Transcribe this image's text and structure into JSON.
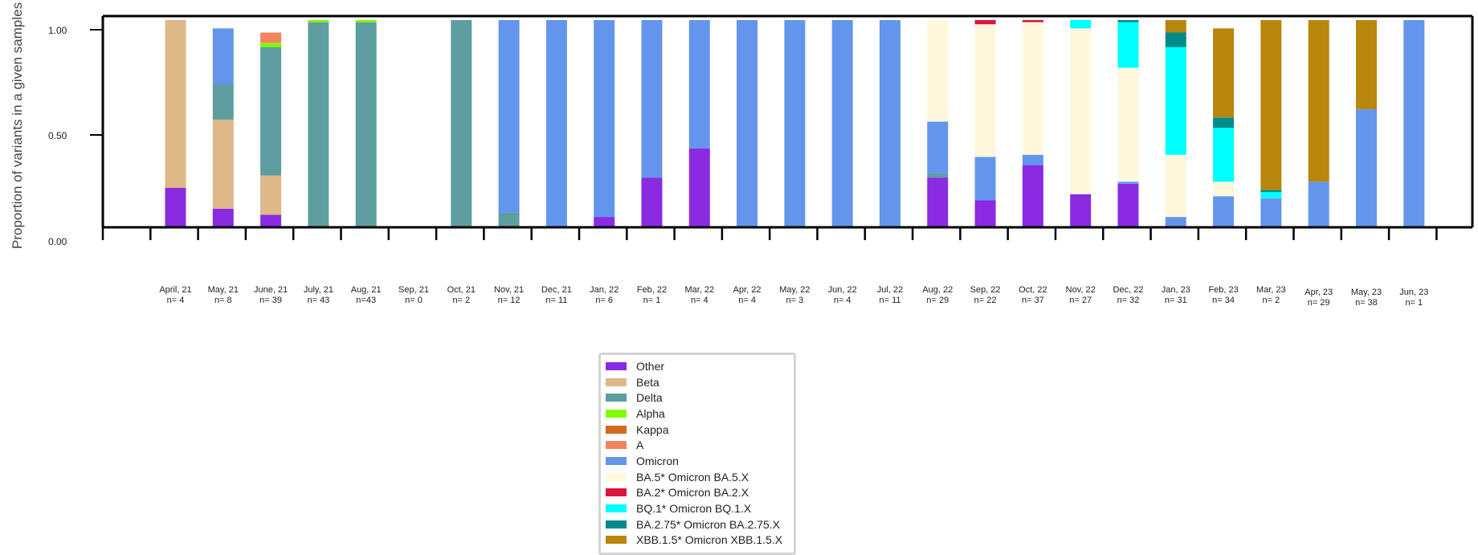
{
  "chart_data": {
    "type": "bar",
    "stacked": true,
    "title": "",
    "ylabel": "Proportion of variants in a given samples",
    "xlabel": "",
    "ylim": [
      0,
      1
    ],
    "yticks": [
      "0.00",
      "0.50",
      "1.00"
    ],
    "grid": false,
    "legend_position": "below",
    "categories": [
      {
        "month": "April, 21",
        "n": "n= 4"
      },
      {
        "month": "May, 21",
        "n": "n= 8"
      },
      {
        "month": "June, 21",
        "n": "n= 39"
      },
      {
        "month": "July, 21",
        "n": "n= 43"
      },
      {
        "month": "Aug, 21",
        "n": "n=43"
      },
      {
        "month": "Sep, 21",
        "n": "n= 0"
      },
      {
        "month": "Oct, 21",
        "n": "n= 2"
      },
      {
        "month": "Nov, 21",
        "n": "n= 12"
      },
      {
        "month": "Dec, 21",
        "n": "n= 11"
      },
      {
        "month": "Jan, 22",
        "n": "n= 6"
      },
      {
        "month": "Feb, 22",
        "n": "n= 1"
      },
      {
        "month": "Mar, 22",
        "n": "n= 4"
      },
      {
        "month": "Apr, 22",
        "n": "n= 4"
      },
      {
        "month": "May, 22",
        "n": "n= 3"
      },
      {
        "month": "Jun, 22",
        "n": "n= 4"
      },
      {
        "month": "Jul, 22",
        "n": "n= 11"
      },
      {
        "month": "Aug, 22",
        "n": "n= 29"
      },
      {
        "month": "Sep, 22",
        "n": "n= 22"
      },
      {
        "month": "Oct, 22",
        "n": "n= 37"
      },
      {
        "month": "Nov, 22",
        "n": "n= 27"
      },
      {
        "month": "Dec, 22",
        "n": "n= 32"
      },
      {
        "month": "Jan, 23",
        "n": "n= 31"
      },
      {
        "month": "Feb, 23",
        "n": "n= 34"
      },
      {
        "month": "Mar, 23",
        "n": "n= 2"
      },
      {
        "month": "Apr, 23",
        "n": "n= 29"
      },
      {
        "month": "May, 23",
        "n": "n= 38"
      },
      {
        "month": "Jun, 23",
        "n": "n= 1"
      }
    ],
    "series": [
      {
        "name": "Other",
        "color": "#8a2be2",
        "values": [
          0.19,
          0.09,
          0.06,
          0,
          0,
          0,
          0,
          0,
          0,
          0.05,
          0.24,
          0.38,
          0,
          0,
          0,
          0,
          0.24,
          0.13,
          0.3,
          0.16,
          0.21,
          0,
          0,
          0,
          0,
          0,
          0
        ]
      },
      {
        "name": "Beta",
        "color": "#deb887",
        "values": [
          0.81,
          0.43,
          0.19,
          0,
          0,
          0,
          0,
          0,
          0,
          0,
          0,
          0,
          0,
          0,
          0,
          0,
          0,
          0,
          0,
          0,
          0,
          0,
          0,
          0,
          0,
          0,
          0
        ]
      },
      {
        "name": "Delta",
        "color": "#5f9ea0",
        "values": [
          0,
          0.17,
          0.62,
          0.99,
          0.99,
          0,
          1.0,
          0.07,
          0,
          0,
          0,
          0,
          0,
          0,
          0,
          0,
          0.02,
          0,
          0,
          0,
          0,
          0,
          0,
          0,
          0,
          0,
          0
        ]
      },
      {
        "name": "Alpha",
        "color": "#7fff00",
        "values": [
          0,
          0,
          0.02,
          0.01,
          0.01,
          0,
          0,
          0,
          0,
          0,
          0,
          0,
          0,
          0,
          0,
          0,
          0,
          0,
          0,
          0,
          0,
          0,
          0,
          0,
          0,
          0,
          0
        ]
      },
      {
        "name": "Kappa",
        "color": "#d2691e",
        "values": [
          0,
          0,
          0,
          0,
          0,
          0,
          0,
          0,
          0,
          0,
          0,
          0,
          0,
          0,
          0,
          0,
          0,
          0,
          0,
          0,
          0,
          0,
          0,
          0,
          0,
          0,
          0
        ]
      },
      {
        "name": "A",
        "color": "#f4845f",
        "values": [
          0,
          0,
          0.05,
          0,
          0,
          0,
          0,
          0,
          0,
          0,
          0,
          0,
          0,
          0,
          0,
          0,
          0,
          0,
          0,
          0,
          0,
          0,
          0,
          0,
          0,
          0,
          0
        ]
      },
      {
        "name": "Omicron",
        "color": "#6495ed",
        "values": [
          0,
          0.27,
          0,
          0,
          0,
          0,
          0,
          0.93,
          1.0,
          0.95,
          0.76,
          0.62,
          1.0,
          1.0,
          1.0,
          1.0,
          0.25,
          0.21,
          0.05,
          0,
          0.01,
          0.05,
          0.15,
          0.14,
          0.22,
          0.57,
          1.0
        ]
      },
      {
        "name": "BA.5* Omicron BA.5.X",
        "color": "#fff8dc",
        "values": [
          0,
          0,
          0,
          0,
          0,
          0,
          0,
          0,
          0,
          0,
          0,
          0,
          0,
          0,
          0,
          0,
          0.49,
          0.64,
          0.64,
          0.8,
          0.55,
          0.3,
          0.07,
          0,
          0,
          0,
          0
        ]
      },
      {
        "name": "BA.2* Omicron BA.2.X",
        "color": "#dc143c",
        "values": [
          0,
          0,
          0,
          0,
          0,
          0,
          0,
          0,
          0,
          0,
          0,
          0,
          0,
          0,
          0,
          0,
          0,
          0.02,
          0.01,
          0,
          0,
          0,
          0,
          0,
          0,
          0,
          0
        ]
      },
      {
        "name": "BQ.1* Omicron BQ.1.X",
        "color": "#00ffff",
        "values": [
          0,
          0,
          0,
          0,
          0,
          0,
          0,
          0,
          0,
          0,
          0,
          0,
          0,
          0,
          0,
          0,
          0,
          0,
          0,
          0.04,
          0.22,
          0.52,
          0.26,
          0.03,
          0,
          0,
          0
        ]
      },
      {
        "name": "BA.2.75* Omicron BA.2.75.X",
        "color": "#008b8b",
        "values": [
          0,
          0,
          0,
          0,
          0,
          0,
          0,
          0,
          0,
          0,
          0,
          0,
          0,
          0,
          0,
          0,
          0,
          0,
          0,
          0,
          0.01,
          0.07,
          0.05,
          0.01,
          0,
          0,
          0
        ]
      },
      {
        "name": "XBB.1.5* Omicron XBB.1.5.X",
        "color": "#b8860b",
        "values": [
          0,
          0,
          0,
          0,
          0,
          0,
          0,
          0,
          0,
          0,
          0,
          0,
          0,
          0,
          0,
          0,
          0,
          0,
          0,
          0,
          0,
          0.06,
          0.43,
          0.82,
          0.78,
          0.43,
          0
        ]
      }
    ]
  }
}
